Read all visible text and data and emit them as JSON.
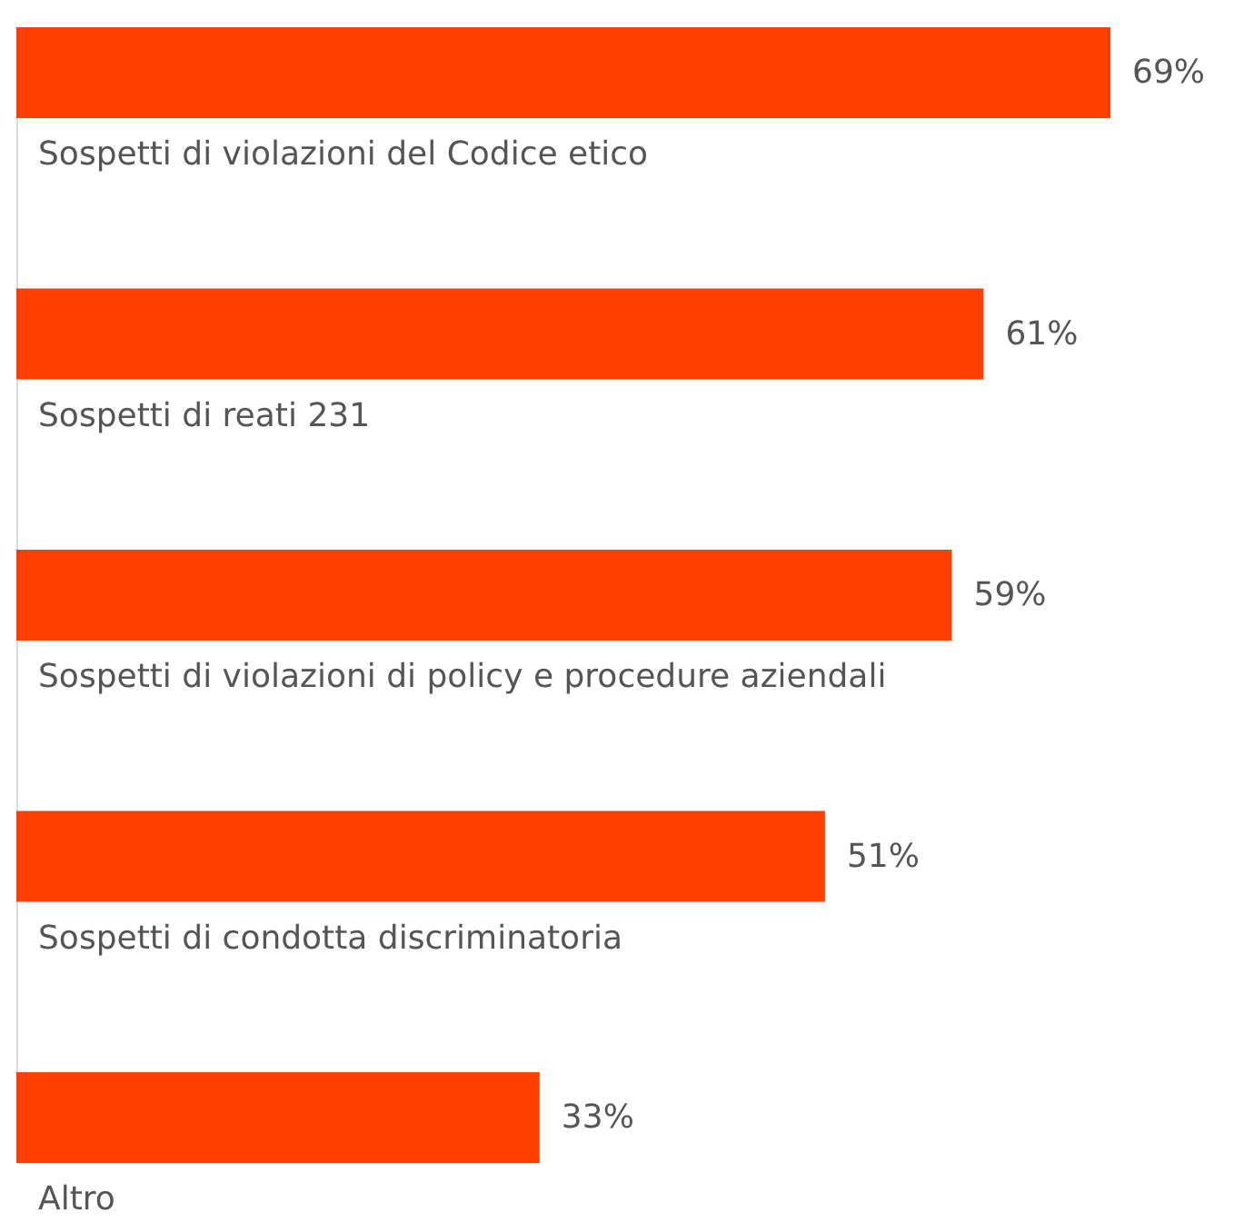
{
  "chart_data": {
    "type": "bar",
    "orientation": "horizontal",
    "categories": [
      "Sospetti di violazioni del Codice etico",
      "Sospetti di reati 231",
      "Sospetti di violazioni di policy e procedure aziendali",
      "Sospetti di condotta discriminatoria",
      "Altro"
    ],
    "values": [
      69,
      61,
      59,
      51,
      33
    ],
    "color": "#ff4000",
    "value_labels": [
      "69%",
      "61%",
      "59%",
      "51%",
      "33%"
    ]
  }
}
